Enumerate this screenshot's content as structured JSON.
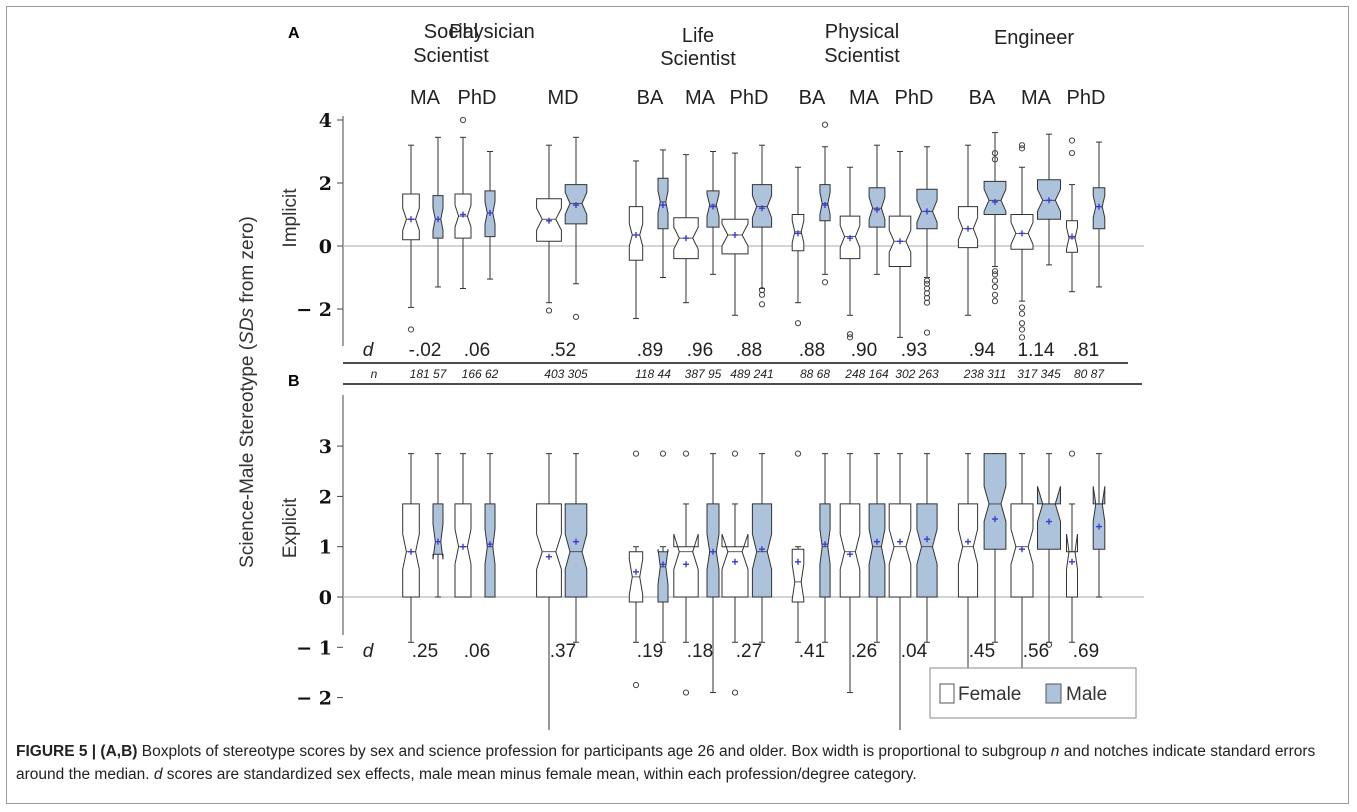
{
  "figure": {
    "panel_a": "A",
    "panel_b": "B",
    "y_axis_main_prefix": "Science-Male Stereotype (",
    "y_axis_main_italic": "SDs",
    "y_axis_main_suffix": " from zero)",
    "y_axis_a": "Implicit",
    "y_axis_b": "Explicit",
    "d_label": "d",
    "n_label": "n"
  },
  "professions": [
    {
      "name_lines": [
        "Social",
        "Scientist"
      ]
    },
    {
      "name_lines": [
        "Physician"
      ]
    },
    {
      "name_lines": [
        "Life",
        "Scientist"
      ]
    },
    {
      "name_lines": [
        "Physical",
        "Scientist"
      ]
    },
    {
      "name_lines": [
        "Engineer"
      ]
    }
  ],
  "legend": {
    "female": "Female",
    "male": "Male"
  },
  "colors": {
    "female_fill": "#ffffff",
    "male_fill": "#adc3dc",
    "mean_marker": "#3b3bd6",
    "outline": "#333333"
  },
  "caption": {
    "label": "FIGURE 5 | (A,B)",
    "text": " Boxplots of stereotype scores by sex and science profession for participants age 26 and older. Box width is proportional to subgroup ",
    "n_italic": "n",
    "text2": " and notches indicate standard errors around the median. ",
    "d_italic": "d",
    "text3": " scores are standardized sex effects, male mean minus female mean, within each profession/degree category."
  },
  "chart_data": [
    {
      "type": "boxplot",
      "panel": "A",
      "ylabel": "Implicit",
      "ylim": [
        -3,
        4.3
      ],
      "yticks": [
        -2,
        0,
        2,
        4
      ],
      "ytick_labels": [
        "− 2",
        "0",
        "2",
        "4"
      ],
      "reference_line": 0,
      "categories": [
        {
          "profession": "Social Scientist",
          "degree": "MA",
          "d": "-.02",
          "n_female": "181",
          "n_male": "57",
          "female": {
            "whislo": -1.95,
            "q1": 0.2,
            "med": 0.85,
            "q3": 1.65,
            "whishi": 3.2,
            "mean": 0.85,
            "fliers": [
              -2.65
            ]
          },
          "male": {
            "whislo": -1.3,
            "q1": 0.25,
            "med": 0.85,
            "q3": 1.6,
            "whishi": 3.45,
            "mean": 0.85,
            "fliers": []
          }
        },
        {
          "profession": "Social Scientist",
          "degree": "PhD",
          "d": ".06",
          "n_female": "166",
          "n_male": "62",
          "female": {
            "whislo": -1.35,
            "q1": 0.25,
            "med": 0.95,
            "q3": 1.65,
            "whishi": 3.45,
            "mean": 1.0,
            "fliers": [
              4.0
            ]
          },
          "male": {
            "whislo": -1.05,
            "q1": 0.3,
            "med": 1.05,
            "q3": 1.75,
            "whishi": 3.0,
            "mean": 1.05,
            "fliers": []
          }
        },
        {
          "profession": "Physician",
          "degree": "MD",
          "d": ".52",
          "n_female": "403",
          "n_male": "305",
          "female": {
            "whislo": -1.8,
            "q1": 0.15,
            "med": 0.85,
            "q3": 1.5,
            "whishi": 3.2,
            "mean": 0.8,
            "fliers": [
              -2.05
            ]
          },
          "male": {
            "whislo": -1.2,
            "q1": 0.7,
            "med": 1.35,
            "q3": 1.95,
            "whishi": 3.45,
            "mean": 1.3,
            "fliers": [
              -2.25
            ]
          }
        },
        {
          "profession": "Life Scientist",
          "degree": "BA",
          "d": ".89",
          "n_female": "118",
          "n_male": "44",
          "female": {
            "whislo": -2.3,
            "q1": -0.45,
            "med": 0.35,
            "q3": 1.25,
            "whishi": 2.7,
            "mean": 0.35,
            "fliers": []
          },
          "male": {
            "whislo": -1.0,
            "q1": 0.55,
            "med": 1.4,
            "q3": 2.15,
            "whishi": 3.05,
            "mean": 1.3,
            "fliers": []
          }
        },
        {
          "profession": "Life Scientist",
          "degree": "MA",
          "d": ".96",
          "n_female": "387",
          "n_male": "95",
          "female": {
            "whislo": -1.8,
            "q1": -0.4,
            "med": 0.25,
            "q3": 0.9,
            "whishi": 2.9,
            "mean": 0.25,
            "fliers": []
          },
          "male": {
            "whislo": -0.9,
            "q1": 0.6,
            "med": 1.3,
            "q3": 1.75,
            "whishi": 3.0,
            "mean": 1.25,
            "fliers": []
          }
        },
        {
          "profession": "Life Scientist",
          "degree": "PhD",
          "d": ".88",
          "n_female": "489",
          "n_male": "241",
          "female": {
            "whislo": -2.2,
            "q1": -0.25,
            "med": 0.35,
            "q3": 0.85,
            "whishi": 2.95,
            "mean": 0.35,
            "fliers": []
          },
          "male": {
            "whislo": -1.35,
            "q1": 0.6,
            "med": 1.25,
            "q3": 1.95,
            "whishi": 3.2,
            "mean": 1.2,
            "fliers": [
              -1.4,
              -1.55,
              -1.85
            ]
          }
        },
        {
          "profession": "Physical Scientist",
          "degree": "BA",
          "d": ".88",
          "n_female": "88",
          "n_male": "68",
          "female": {
            "whislo": -1.8,
            "q1": -0.15,
            "med": 0.45,
            "q3": 1.0,
            "whishi": 2.5,
            "mean": 0.4,
            "fliers": [
              -2.45
            ]
          },
          "male": {
            "whislo": -0.9,
            "q1": 0.8,
            "med": 1.35,
            "q3": 1.95,
            "whishi": 3.15,
            "mean": 1.3,
            "fliers": [
              3.85,
              -1.15
            ]
          }
        },
        {
          "profession": "Physical Scientist",
          "degree": "MA",
          "d": ".90",
          "n_female": "248",
          "n_male": "164",
          "female": {
            "whislo": -2.2,
            "q1": -0.4,
            "med": 0.3,
            "q3": 0.95,
            "whishi": 2.5,
            "mean": 0.25,
            "fliers": [
              -2.8,
              -2.9
            ]
          },
          "male": {
            "whislo": -0.9,
            "q1": 0.6,
            "med": 1.2,
            "q3": 1.85,
            "whishi": 3.2,
            "mean": 1.15,
            "fliers": []
          }
        },
        {
          "profession": "Physical Scientist",
          "degree": "PhD",
          "d": ".93",
          "n_female": "302",
          "n_male": "263",
          "female": {
            "whislo": -2.9,
            "q1": -0.65,
            "med": 0.15,
            "q3": 0.95,
            "whishi": 3.0,
            "mean": 0.15,
            "fliers": []
          },
          "male": {
            "whislo": -1.0,
            "q1": 0.55,
            "med": 1.1,
            "q3": 1.8,
            "whishi": 3.15,
            "mean": 1.1,
            "fliers": [
              -1.1,
              -1.2,
              -1.35,
              -1.5,
              -1.65,
              -1.8,
              -2.75
            ]
          }
        },
        {
          "profession": "Engineer",
          "degree": "BA",
          "d": ".94",
          "n_female": "238",
          "n_male": "311",
          "female": {
            "whislo": -2.2,
            "q1": -0.05,
            "med": 0.55,
            "q3": 1.25,
            "whishi": 3.2,
            "mean": 0.55,
            "fliers": []
          },
          "male": {
            "whislo": -0.65,
            "q1": 1.0,
            "med": 1.45,
            "q3": 2.05,
            "whishi": 3.6,
            "mean": 1.4,
            "fliers": [
              2.95,
              2.75,
              -0.8,
              -0.9,
              -1.1,
              -1.3,
              -1.55,
              -1.75
            ]
          }
        },
        {
          "profession": "Engineer",
          "degree": "MA",
          "d": "1.14",
          "n_female": "317",
          "n_male": "345",
          "female": {
            "whislo": -1.75,
            "q1": -0.1,
            "med": 0.4,
            "q3": 1.0,
            "whishi": 2.5,
            "mean": 0.4,
            "fliers": [
              3.1,
              3.2,
              -1.95,
              -2.15,
              -2.45,
              -2.65,
              -2.9
            ]
          },
          "male": {
            "whislo": -0.6,
            "q1": 0.85,
            "med": 1.45,
            "q3": 2.1,
            "whishi": 3.55,
            "mean": 1.45,
            "fliers": []
          }
        },
        {
          "profession": "Engineer",
          "degree": "PhD",
          "d": ".81",
          "n_female": "80",
          "n_male": "87",
          "female": {
            "whislo": -1.45,
            "q1": -0.2,
            "med": 0.25,
            "q3": 0.8,
            "whishi": 1.95,
            "mean": 0.3,
            "fliers": [
              3.35,
              2.95
            ]
          },
          "male": {
            "whislo": -1.3,
            "q1": 0.55,
            "med": 1.25,
            "q3": 1.85,
            "whishi": 3.3,
            "mean": 1.25,
            "fliers": []
          }
        }
      ]
    },
    {
      "type": "boxplot",
      "panel": "B",
      "ylabel": "Explicit",
      "ylim": [
        -2.9,
        3.15
      ],
      "yticks": [
        -2,
        -1,
        0,
        1,
        2,
        3
      ],
      "ytick_labels": [
        "− 2",
        "− 1",
        "0",
        "1",
        "2",
        "3"
      ],
      "reference_line": 0,
      "categories": [
        {
          "profession": "Social Scientist",
          "degree": "MA",
          "d": ".25",
          "female": {
            "whislo": -0.9,
            "q1": 0,
            "med": 0.9,
            "q3": 1.85,
            "whishi": 2.85,
            "mean": 0.9,
            "fliers": []
          },
          "male": {
            "whislo": 0,
            "q1": 0.85,
            "med": 1.1,
            "q3": 1.85,
            "whishi": 2.85,
            "mean": 1.1,
            "fliers": []
          }
        },
        {
          "profession": "Social Scientist",
          "degree": "PhD",
          "d": ".06",
          "female": {
            "whislo": 0,
            "q1": 0,
            "med": 1.0,
            "q3": 1.85,
            "whishi": 2.85,
            "mean": 1.0,
            "fliers": []
          },
          "male": {
            "whislo": 0,
            "q1": 0,
            "med": 1.0,
            "q3": 1.85,
            "whishi": 2.85,
            "mean": 1.05,
            "fliers": []
          }
        },
        {
          "profession": "Physician",
          "degree": "MD",
          "d": ".37",
          "female": {
            "whislo": -2.9,
            "q1": 0,
            "med": 0.9,
            "q3": 1.85,
            "whishi": 2.85,
            "mean": 0.8,
            "fliers": []
          },
          "male": {
            "whislo": -0.9,
            "q1": 0,
            "med": 0.9,
            "q3": 1.85,
            "whishi": 2.85,
            "mean": 1.1,
            "fliers": []
          }
        },
        {
          "profession": "Life Scientist",
          "degree": "BA",
          "d": ".19",
          "female": {
            "whislo": -0.9,
            "q1": -0.1,
            "med": 0.4,
            "q3": 0.9,
            "whishi": 1.0,
            "mean": 0.5,
            "fliers": [
              2.85,
              -1.75
            ]
          },
          "male": {
            "whislo": -0.9,
            "q1": -0.1,
            "med": 0.6,
            "q3": 0.9,
            "whishi": 1.0,
            "mean": 0.65,
            "fliers": [
              2.85
            ]
          }
        },
        {
          "profession": "Life Scientist",
          "degree": "MA",
          "d": ".18",
          "female": {
            "whislo": -0.9,
            "q1": 0,
            "med": 0.9,
            "q3": 1.0,
            "whishi": 1.85,
            "mean": 0.65,
            "fliers": [
              2.85,
              -1.9,
              -2.85
            ]
          },
          "male": {
            "whislo": -1.9,
            "q1": 0,
            "med": 0.9,
            "q3": 1.85,
            "whishi": 2.85,
            "mean": 0.9,
            "fliers": []
          }
        },
        {
          "profession": "Life Scientist",
          "degree": "PhD",
          "d": ".27",
          "female": {
            "whislo": -0.9,
            "q1": 0,
            "med": 0.9,
            "q3": 1.0,
            "whishi": 1.85,
            "mean": 0.7,
            "fliers": [
              2.85,
              -1.9,
              -2.85
            ]
          },
          "male": {
            "whislo": -0.9,
            "q1": 0,
            "med": 0.9,
            "q3": 1.85,
            "whishi": 2.85,
            "mean": 0.95,
            "fliers": []
          }
        },
        {
          "profession": "Physical Scientist",
          "degree": "BA",
          "d": ".41",
          "female": {
            "whislo": -0.9,
            "q1": -0.1,
            "med": 0.3,
            "q3": 0.95,
            "whishi": 1.0,
            "mean": 0.7,
            "fliers": [
              2.85
            ]
          },
          "male": {
            "whislo": -0.9,
            "q1": 0,
            "med": 1.0,
            "q3": 1.85,
            "whishi": 2.85,
            "mean": 1.05,
            "fliers": []
          }
        },
        {
          "profession": "Physical Scientist",
          "degree": "MA",
          "d": ".26",
          "female": {
            "whislo": -1.9,
            "q1": 0,
            "med": 0.9,
            "q3": 1.85,
            "whishi": 2.85,
            "mean": 0.85,
            "fliers": []
          },
          "male": {
            "whislo": -0.9,
            "q1": 0,
            "med": 1.0,
            "q3": 1.85,
            "whishi": 2.85,
            "mean": 1.1,
            "fliers": []
          }
        },
        {
          "profession": "Physical Scientist",
          "degree": "PhD",
          "d": ".04",
          "female": {
            "whislo": -2.9,
            "q1": 0,
            "med": 1.0,
            "q3": 1.85,
            "whishi": 2.85,
            "mean": 1.1,
            "fliers": []
          },
          "male": {
            "whislo": -0.9,
            "q1": 0,
            "med": 1.0,
            "q3": 1.85,
            "whishi": 2.85,
            "mean": 1.15,
            "fliers": []
          }
        },
        {
          "profession": "Engineer",
          "degree": "BA",
          "d": ".45",
          "female": {
            "whislo": -1.9,
            "q1": 0,
            "med": 1.0,
            "q3": 1.85,
            "whishi": 2.85,
            "mean": 1.1,
            "fliers": []
          },
          "male": {
            "whislo": -0.9,
            "q1": 0.95,
            "med": 1.85,
            "q3": 2.85,
            "whishi": 2.85,
            "mean": 1.55,
            "fliers": []
          }
        },
        {
          "profession": "Engineer",
          "degree": "MA",
          "d": ".56",
          "female": {
            "whislo": -1.9,
            "q1": 0,
            "med": 1.0,
            "q3": 1.85,
            "whishi": 2.85,
            "mean": 0.95,
            "fliers": []
          },
          "male": {
            "whislo": -0.9,
            "q1": 0.95,
            "med": 1.85,
            "q3": 1.85,
            "whishi": 2.85,
            "mean": 1.5,
            "fliers": [
              -0.95,
              -1.85
            ]
          }
        },
        {
          "profession": "Engineer",
          "degree": "PhD",
          "d": ".69",
          "female": {
            "whislo": -0.9,
            "q1": 0,
            "med": 0.9,
            "q3": 0.9,
            "whishi": 1.85,
            "mean": 0.7,
            "fliers": [
              2.85,
              -2.85
            ]
          },
          "male": {
            "whislo": 0,
            "q1": 0.95,
            "med": 1.85,
            "q3": 1.85,
            "whishi": 2.85,
            "mean": 1.4,
            "fliers": []
          }
        }
      ]
    }
  ]
}
